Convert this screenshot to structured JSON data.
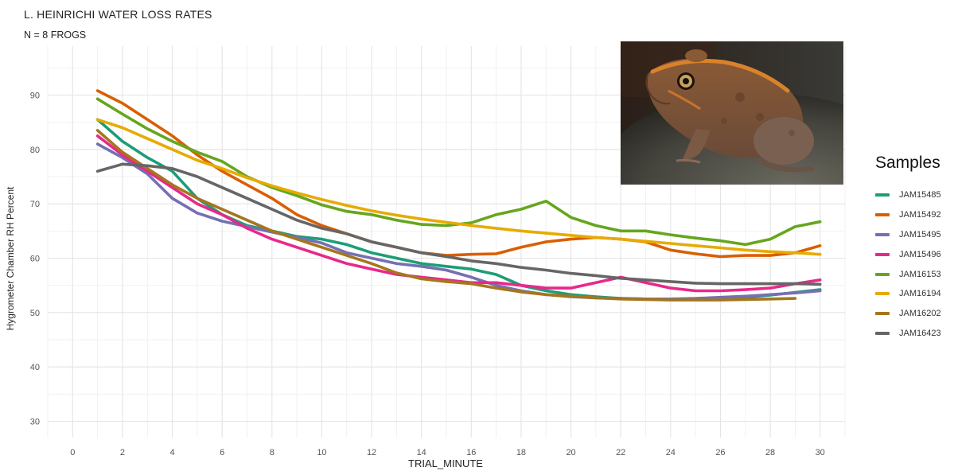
{
  "title": "L. HEINRICHI WATER LOSS RATES",
  "subtitle": "N = 8 FROGS",
  "chart_data": {
    "type": "line",
    "title": "L. HEINRICHI WATER LOSS RATES",
    "subtitle": "N = 8 FROGS",
    "xlabel": "TRIAL_MINUTE",
    "ylabel": "Hygrometer Chamber RH Percent",
    "xlim": [
      -1,
      31
    ],
    "ylim": [
      27,
      99
    ],
    "xticks": [
      0,
      2,
      4,
      6,
      8,
      10,
      12,
      14,
      16,
      18,
      20,
      22,
      24,
      26,
      28,
      30
    ],
    "yticks": [
      30,
      40,
      50,
      60,
      70,
      80,
      90
    ],
    "grid": true,
    "legend_title": "Samples",
    "legend_position": "right",
    "series": [
      {
        "name": "JAM15485",
        "color": "#1B9E77",
        "x": [
          1,
          2,
          3,
          4,
          5,
          6,
          7,
          8,
          9,
          10,
          11,
          12,
          13,
          14,
          15,
          16,
          17,
          18,
          19,
          20,
          21,
          22,
          23,
          24,
          25,
          26,
          27,
          28,
          29,
          30
        ],
        "values": [
          85.5,
          81.5,
          78.5,
          76,
          71,
          68,
          66,
          65,
          64,
          63.5,
          62.5,
          61,
          60,
          59,
          58.5,
          58,
          57,
          55,
          54,
          53.3,
          52.9,
          52.6,
          52.5,
          52.4,
          52.4,
          52.5,
          52.8,
          53.2,
          53.7,
          54.2
        ]
      },
      {
        "name": "JAM15492",
        "color": "#D95F02",
        "x": [
          1,
          2,
          3,
          4,
          5,
          6,
          7,
          8,
          9,
          10,
          11,
          12,
          13,
          14,
          15,
          16,
          17,
          18,
          19,
          20,
          21,
          22,
          23,
          24,
          25,
          26,
          27,
          28,
          29,
          30
        ],
        "values": [
          90.8,
          88.5,
          85.5,
          82.5,
          79,
          76,
          73.5,
          71,
          68,
          66,
          64.5,
          63,
          62,
          61,
          60.5,
          60.7,
          60.8,
          62,
          63,
          63.5,
          63.8,
          63.5,
          63,
          61.5,
          60.8,
          60.3,
          60.5,
          60.5,
          61,
          62.3
        ]
      },
      {
        "name": "JAM15495",
        "color": "#7570B3",
        "x": [
          1,
          2,
          3,
          4,
          5,
          6,
          7,
          8,
          9,
          10,
          11,
          12,
          13,
          14,
          15,
          16,
          17,
          18,
          19,
          20,
          21,
          22,
          23,
          24,
          25,
          26,
          27,
          28,
          29,
          30
        ],
        "values": [
          81,
          78.5,
          75.5,
          71,
          68.3,
          66.8,
          65.8,
          64.8,
          63.8,
          62.8,
          61,
          60,
          59,
          58.5,
          57.8,
          56.5,
          55,
          54,
          53.3,
          52.9,
          52.7,
          52.6,
          52.5,
          52.5,
          52.6,
          52.8,
          53,
          53.3,
          53.6,
          54
        ]
      },
      {
        "name": "JAM15496",
        "color": "#E7298A",
        "x": [
          1,
          2,
          3,
          4,
          5,
          6,
          7,
          8,
          9,
          10,
          11,
          12,
          13,
          14,
          15,
          16,
          17,
          18,
          19,
          20,
          21,
          22,
          23,
          24,
          25,
          26,
          27,
          28,
          29,
          30
        ],
        "values": [
          82.5,
          79,
          76,
          73,
          70,
          68,
          65.5,
          63.5,
          62,
          60.5,
          59,
          58,
          57,
          56.5,
          56,
          55.5,
          55.5,
          55,
          54.5,
          54.5,
          55.5,
          56.5,
          55.5,
          54.5,
          54,
          54,
          54.2,
          54.5,
          55.3,
          56
        ]
      },
      {
        "name": "JAM16153",
        "color": "#66A61E",
        "x": [
          1,
          2,
          3,
          4,
          5,
          6,
          7,
          8,
          9,
          10,
          11,
          12,
          13,
          14,
          15,
          16,
          17,
          18,
          19,
          20,
          21,
          22,
          23,
          24,
          25,
          26,
          27,
          28,
          29,
          30
        ],
        "values": [
          89.3,
          86.5,
          83.8,
          81.5,
          79.5,
          77.8,
          75,
          73,
          71.5,
          69.8,
          68.6,
          68,
          67,
          66.2,
          66,
          66.5,
          68,
          69,
          70.5,
          67.5,
          66,
          65,
          65,
          64.3,
          63.7,
          63.2,
          62.5,
          63.5,
          65.8,
          66.7
        ]
      },
      {
        "name": "JAM16194",
        "color": "#E6AB02",
        "x": [
          1,
          2,
          3,
          4,
          5,
          6,
          7,
          8,
          9,
          10,
          11,
          12,
          13,
          14,
          15,
          16,
          17,
          18,
          19,
          20,
          21,
          22,
          23,
          24,
          25,
          26,
          27,
          28,
          29,
          30
        ],
        "values": [
          85.5,
          84,
          82,
          80,
          78,
          76.5,
          74.8,
          73.3,
          72,
          70.8,
          69.7,
          68.7,
          67.9,
          67.2,
          66.6,
          66,
          65.5,
          65,
          64.6,
          64.2,
          63.8,
          63.5,
          63.1,
          62.7,
          62.3,
          61.9,
          61.5,
          61.2,
          61,
          60.7
        ]
      },
      {
        "name": "JAM16202",
        "color": "#A6761D",
        "x": [
          1,
          2,
          3,
          4,
          5,
          6,
          7,
          8,
          9,
          10,
          11,
          12,
          13,
          14,
          15,
          16,
          17,
          18,
          19,
          20,
          21,
          22,
          23,
          24,
          25,
          26,
          27,
          28,
          29
        ],
        "values": [
          83.5,
          79.5,
          76.5,
          73.5,
          71,
          69,
          67,
          65,
          63.5,
          62,
          60.5,
          59,
          57.3,
          56.2,
          55.7,
          55.3,
          54.5,
          53.8,
          53.3,
          53,
          52.7,
          52.5,
          52.4,
          52.3,
          52.3,
          52.3,
          52.4,
          52.5,
          52.6
        ]
      },
      {
        "name": "JAM16423",
        "color": "#666666",
        "x": [
          1,
          2,
          3,
          4,
          5,
          6,
          7,
          8,
          9,
          10,
          11,
          12,
          13,
          14,
          15,
          16,
          17,
          18,
          19,
          20,
          21,
          22,
          23,
          24,
          25,
          26,
          27,
          28,
          29,
          30
        ],
        "values": [
          76,
          77.3,
          77,
          76.5,
          75,
          73,
          71,
          69,
          67,
          65.5,
          64.5,
          63,
          62,
          61,
          60.3,
          59.5,
          59,
          58.3,
          57.8,
          57.2,
          56.8,
          56.3,
          56,
          55.7,
          55.4,
          55.3,
          55.3,
          55.3,
          55.3,
          55.2
        ]
      }
    ]
  },
  "photo": {
    "icon": "frog-photo",
    "description_hidden": ""
  }
}
